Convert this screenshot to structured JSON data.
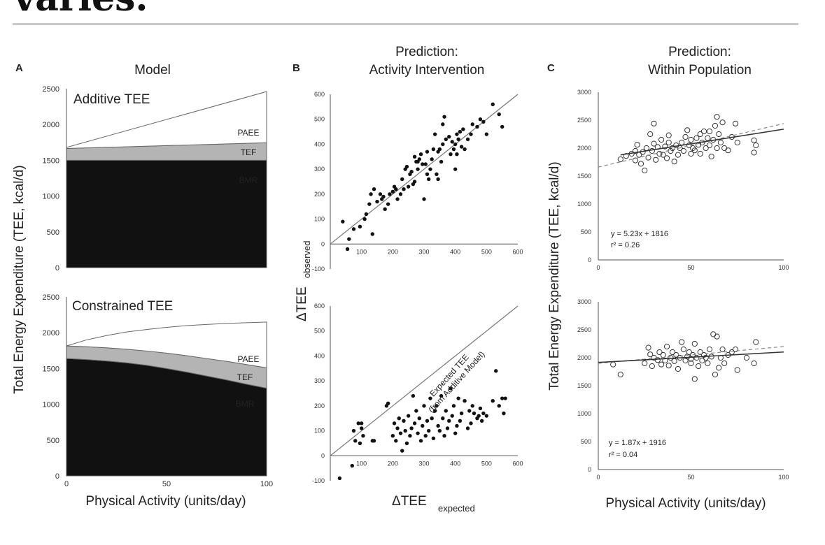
{
  "heading": "varies.",
  "colors": {
    "bmr": "#111111",
    "tef": "#b4b4b4",
    "paee": "#ffffff",
    "rule": "#c8c8c8",
    "points": "#111111"
  },
  "panels": {
    "A": {
      "letter": "A",
      "title": "Model",
      "ylabel": "Total Energy Expenditure (TEE, kcal/d)",
      "xlabel": "Physical Activity (units/day)",
      "regions": {
        "paee": "PAEE",
        "tef": "TEF",
        "bmr": "BMR"
      },
      "top_label": "Additive TEE",
      "bottom_label": "Constrained TEE"
    },
    "B": {
      "letter": "B",
      "title_line1": "Prediction:",
      "title_line2": "Activity Intervention",
      "ylabel_main": "ΔTEE",
      "ylabel_sub": "observed",
      "xlabel_main": "ΔTEE",
      "xlabel_sub": "expected",
      "annotation_line1": "Expected TEE",
      "annotation_line2": "(from Additive Model)"
    },
    "C": {
      "letter": "C",
      "title_line1": "Prediction:",
      "title_line2": "Within Population",
      "ylabel": "Total Energy Expenditure (TEE, kcal/d)",
      "xlabel": "Physical Activity (units/day)",
      "top_eq": "y = 5.23x + 1816",
      "top_r2": "r² = 0.26",
      "bottom_eq": "y = 1.87x + 1916",
      "bottom_r2": "r² = 0.04"
    }
  },
  "chart_data": [
    {
      "type": "area",
      "panel": "A-top",
      "title": "Additive TEE",
      "xlabel": "Physical Activity (units/day)",
      "ylabel": "Total Energy Expenditure (TEE, kcal/d)",
      "xlim": [
        0,
        100
      ],
      "ylim": [
        0,
        2500
      ],
      "yticks": [
        0,
        500,
        1000,
        1500,
        2000,
        2500
      ],
      "x": [
        0,
        100
      ],
      "series": [
        {
          "name": "BMR",
          "values": [
            1500,
            1500
          ]
        },
        {
          "name": "TEF",
          "values": [
            1665,
            1745
          ]
        },
        {
          "name": "PAEE",
          "values": [
            1680,
            2460
          ]
        }
      ]
    },
    {
      "type": "area",
      "panel": "A-bottom",
      "title": "Constrained TEE",
      "xlabel": "Physical Activity (units/day)",
      "ylabel": "Total Energy Expenditure (TEE, kcal/d)",
      "xlim": [
        0,
        100
      ],
      "ylim": [
        0,
        2500
      ],
      "yticks": [
        0,
        500,
        1000,
        1500,
        2000,
        2500
      ],
      "xticks": [
        0,
        50,
        100
      ],
      "x": [
        0,
        10,
        20,
        30,
        40,
        50,
        60,
        70,
        80,
        90,
        100
      ],
      "series": [
        {
          "name": "BMR",
          "values": [
            1640,
            1625,
            1605,
            1580,
            1545,
            1500,
            1450,
            1395,
            1340,
            1280,
            1225
          ]
        },
        {
          "name": "TEF",
          "values": [
            1815,
            1805,
            1790,
            1770,
            1745,
            1715,
            1680,
            1640,
            1600,
            1555,
            1510
          ]
        },
        {
          "name": "PAEE",
          "values": [
            1815,
            1900,
            1960,
            2010,
            2045,
            2075,
            2100,
            2115,
            2130,
            2140,
            2150
          ]
        }
      ]
    },
    {
      "type": "scatter",
      "panel": "B-top",
      "xlim": [
        0,
        600
      ],
      "ylim": [
        -100,
        600
      ],
      "xticks": [
        100,
        200,
        300,
        400,
        500,
        600
      ],
      "yticks": [
        -100,
        0,
        100,
        200,
        300,
        400,
        500,
        600
      ],
      "reference_line": [
        [
          0,
          0
        ],
        [
          600,
          600
        ]
      ],
      "points": [
        [
          40,
          90
        ],
        [
          55,
          -20
        ],
        [
          60,
          20
        ],
        [
          75,
          60
        ],
        [
          95,
          70
        ],
        [
          110,
          100
        ],
        [
          115,
          120
        ],
        [
          125,
          160
        ],
        [
          130,
          200
        ],
        [
          135,
          40
        ],
        [
          140,
          220
        ],
        [
          150,
          170
        ],
        [
          160,
          200
        ],
        [
          165,
          180
        ],
        [
          170,
          190
        ],
        [
          175,
          140
        ],
        [
          185,
          160
        ],
        [
          190,
          200
        ],
        [
          200,
          210
        ],
        [
          205,
          230
        ],
        [
          210,
          220
        ],
        [
          215,
          180
        ],
        [
          225,
          200
        ],
        [
          230,
          260
        ],
        [
          235,
          220
        ],
        [
          240,
          300
        ],
        [
          245,
          310
        ],
        [
          250,
          230
        ],
        [
          255,
          280
        ],
        [
          260,
          290
        ],
        [
          265,
          240
        ],
        [
          270,
          250
        ],
        [
          270,
          350
        ],
        [
          275,
          330
        ],
        [
          280,
          300
        ],
        [
          285,
          340
        ],
        [
          290,
          360
        ],
        [
          295,
          320
        ],
        [
          300,
          180
        ],
        [
          305,
          320
        ],
        [
          310,
          280
        ],
        [
          315,
          260
        ],
        [
          320,
          300
        ],
        [
          325,
          340
        ],
        [
          330,
          380
        ],
        [
          335,
          440
        ],
        [
          340,
          280
        ],
        [
          345,
          370
        ],
        [
          350,
          380
        ],
        [
          355,
          330
        ],
        [
          360,
          480
        ],
        [
          360,
          400
        ],
        [
          365,
          510
        ],
        [
          370,
          420
        ],
        [
          380,
          430
        ],
        [
          385,
          360
        ],
        [
          390,
          410
        ],
        [
          395,
          380
        ],
        [
          400,
          300
        ],
        [
          400,
          400
        ],
        [
          405,
          440
        ],
        [
          410,
          420
        ],
        [
          415,
          450
        ],
        [
          420,
          390
        ],
        [
          425,
          460
        ],
        [
          430,
          380
        ],
        [
          440,
          420
        ],
        [
          450,
          440
        ],
        [
          455,
          480
        ],
        [
          470,
          470
        ],
        [
          480,
          500
        ],
        [
          490,
          490
        ],
        [
          500,
          440
        ],
        [
          520,
          560
        ],
        [
          540,
          520
        ],
        [
          550,
          470
        ],
        [
          345,
          260
        ],
        [
          310,
          370
        ],
        [
          280,
          330
        ],
        [
          405,
          360
        ]
      ]
    },
    {
      "type": "scatter",
      "panel": "B-bottom",
      "xlim": [
        0,
        600
      ],
      "ylim": [
        -100,
        600
      ],
      "xticks": [
        100,
        200,
        300,
        400,
        500,
        600
      ],
      "yticks": [
        -100,
        0,
        100,
        200,
        300,
        400,
        500,
        600
      ],
      "reference_line": [
        [
          0,
          0
        ],
        [
          600,
          600
        ]
      ],
      "points": [
        [
          30,
          -90
        ],
        [
          70,
          -40
        ],
        [
          75,
          100
        ],
        [
          80,
          60
        ],
        [
          90,
          130
        ],
        [
          95,
          50
        ],
        [
          100,
          110
        ],
        [
          100,
          130
        ],
        [
          105,
          80
        ],
        [
          135,
          60
        ],
        [
          140,
          60
        ],
        [
          180,
          200
        ],
        [
          185,
          210
        ],
        [
          200,
          80
        ],
        [
          205,
          130
        ],
        [
          210,
          60
        ],
        [
          215,
          110
        ],
        [
          220,
          150
        ],
        [
          225,
          90
        ],
        [
          230,
          20
        ],
        [
          235,
          140
        ],
        [
          240,
          100
        ],
        [
          245,
          50
        ],
        [
          250,
          160
        ],
        [
          255,
          80
        ],
        [
          260,
          110
        ],
        [
          265,
          240
        ],
        [
          270,
          130
        ],
        [
          275,
          180
        ],
        [
          280,
          90
        ],
        [
          285,
          150
        ],
        [
          290,
          60
        ],
        [
          295,
          120
        ],
        [
          300,
          200
        ],
        [
          305,
          80
        ],
        [
          310,
          140
        ],
        [
          315,
          100
        ],
        [
          320,
          230
        ],
        [
          325,
          150
        ],
        [
          330,
          70
        ],
        [
          335,
          180
        ],
        [
          340,
          200
        ],
        [
          345,
          120
        ],
        [
          350,
          100
        ],
        [
          355,
          240
        ],
        [
          360,
          150
        ],
        [
          365,
          80
        ],
        [
          370,
          180
        ],
        [
          375,
          110
        ],
        [
          380,
          140
        ],
        [
          385,
          270
        ],
        [
          390,
          160
        ],
        [
          395,
          200
        ],
        [
          400,
          90
        ],
        [
          405,
          120
        ],
        [
          410,
          230
        ],
        [
          415,
          140
        ],
        [
          420,
          170
        ],
        [
          430,
          220
        ],
        [
          440,
          110
        ],
        [
          445,
          180
        ],
        [
          450,
          130
        ],
        [
          455,
          200
        ],
        [
          460,
          170
        ],
        [
          470,
          150
        ],
        [
          475,
          160
        ],
        [
          480,
          190
        ],
        [
          485,
          140
        ],
        [
          490,
          170
        ],
        [
          500,
          160
        ],
        [
          520,
          220
        ],
        [
          530,
          340
        ],
        [
          540,
          200
        ],
        [
          550,
          230
        ],
        [
          555,
          170
        ],
        [
          560,
          230
        ]
      ]
    },
    {
      "type": "scatter",
      "panel": "C-top",
      "xlabel": "Physical Activity (units/day)",
      "ylabel": "Total Energy Expenditure (TEE, kcal/d)",
      "xlim": [
        0,
        100
      ],
      "ylim": [
        0,
        3000
      ],
      "xticks": [
        0,
        50,
        100
      ],
      "yticks": [
        0,
        500,
        1000,
        1500,
        2000,
        2500,
        3000
      ],
      "fit": {
        "slope": 5.23,
        "intercept": 1816,
        "x_range": [
          12,
          100
        ]
      },
      "dashed_fit": {
        "points": [
          [
            0,
            1660
          ],
          [
            100,
            2440
          ]
        ]
      },
      "points": [
        [
          12,
          1800
        ],
        [
          15,
          1860
        ],
        [
          18,
          1900
        ],
        [
          20,
          1950
        ],
        [
          20,
          1780
        ],
        [
          21,
          2060
        ],
        [
          22,
          1880
        ],
        [
          23,
          1720
        ],
        [
          24,
          1930
        ],
        [
          25,
          1600
        ],
        [
          26,
          2000
        ],
        [
          27,
          1830
        ],
        [
          28,
          2250
        ],
        [
          29,
          1950
        ],
        [
          30,
          2080
        ],
        [
          30,
          2440
        ],
        [
          31,
          1790
        ],
        [
          32,
          2020
        ],
        [
          33,
          1900
        ],
        [
          34,
          2150
        ],
        [
          35,
          1880
        ],
        [
          36,
          2030
        ],
        [
          37,
          1820
        ],
        [
          38,
          2100
        ],
        [
          38,
          2230
        ],
        [
          39,
          1950
        ],
        [
          40,
          2000
        ],
        [
          41,
          1760
        ],
        [
          42,
          2050
        ],
        [
          43,
          1880
        ],
        [
          44,
          2000
        ],
        [
          45,
          2100
        ],
        [
          46,
          1950
        ],
        [
          47,
          2200
        ],
        [
          48,
          2320
        ],
        [
          49,
          2050
        ],
        [
          50,
          1900
        ],
        [
          50,
          2150
        ],
        [
          51,
          2000
        ],
        [
          52,
          1960
        ],
        [
          53,
          2180
        ],
        [
          54,
          2060
        ],
        [
          55,
          2250
        ],
        [
          55,
          1900
        ],
        [
          56,
          2100
        ],
        [
          57,
          2300
        ],
        [
          58,
          2000
        ],
        [
          59,
          2180
        ],
        [
          60,
          2050
        ],
        [
          60,
          2300
        ],
        [
          61,
          1850
        ],
        [
          62,
          2150
        ],
        [
          63,
          2400
        ],
        [
          64,
          2000
        ],
        [
          64,
          2560
        ],
        [
          65,
          2250
        ],
        [
          66,
          2100
        ],
        [
          67,
          2460
        ],
        [
          68,
          2000
        ],
        [
          70,
          1960
        ],
        [
          72,
          2200
        ],
        [
          74,
          2440
        ],
        [
          75,
          2100
        ],
        [
          84,
          2140
        ],
        [
          84,
          1920
        ],
        [
          85,
          2050
        ]
      ]
    },
    {
      "type": "scatter",
      "panel": "C-bottom",
      "xlabel": "Physical Activity (units/day)",
      "ylabel": "Total Energy Expenditure (TEE, kcal/d)",
      "xlim": [
        0,
        100
      ],
      "ylim": [
        0,
        3000
      ],
      "xticks": [
        0,
        50,
        100
      ],
      "yticks": [
        0,
        500,
        1000,
        1500,
        2000,
        2500,
        3000
      ],
      "fit": {
        "slope": 1.87,
        "intercept": 1916,
        "x_range": [
          0,
          100
        ]
      },
      "dashed_fit": {
        "points": [
          [
            0,
            1900
          ],
          [
            100,
            2200
          ]
        ]
      },
      "points": [
        [
          8,
          1880
        ],
        [
          12,
          1700
        ],
        [
          25,
          1900
        ],
        [
          27,
          2180
        ],
        [
          28,
          2060
        ],
        [
          29,
          1850
        ],
        [
          30,
          2000
        ],
        [
          32,
          1960
        ],
        [
          33,
          2100
        ],
        [
          34,
          1880
        ],
        [
          35,
          2050
        ],
        [
          36,
          1950
        ],
        [
          37,
          2200
        ],
        [
          38,
          1860
        ],
        [
          39,
          2000
        ],
        [
          40,
          2100
        ],
        [
          41,
          1940
        ],
        [
          42,
          2050
        ],
        [
          43,
          1800
        ],
        [
          44,
          2000
        ],
        [
          45,
          2280
        ],
        [
          46,
          2150
        ],
        [
          47,
          1950
        ],
        [
          48,
          2020
        ],
        [
          49,
          2100
        ],
        [
          50,
          1980
        ],
        [
          50,
          1900
        ],
        [
          51,
          2050
        ],
        [
          52,
          1620
        ],
        [
          52,
          2250
        ],
        [
          53,
          2000
        ],
        [
          54,
          1850
        ],
        [
          55,
          2100
        ],
        [
          56,
          1950
        ],
        [
          57,
          2050
        ],
        [
          58,
          2000
        ],
        [
          59,
          1900
        ],
        [
          60,
          2150
        ],
        [
          61,
          2020
        ],
        [
          62,
          2420
        ],
        [
          63,
          1700
        ],
        [
          64,
          2380
        ],
        [
          65,
          1820
        ],
        [
          66,
          2000
        ],
        [
          67,
          2150
        ],
        [
          68,
          1900
        ],
        [
          70,
          2050
        ],
        [
          72,
          2100
        ],
        [
          74,
          2150
        ],
        [
          75,
          1780
        ],
        [
          80,
          2000
        ],
        [
          84,
          1900
        ],
        [
          85,
          2280
        ]
      ]
    }
  ]
}
